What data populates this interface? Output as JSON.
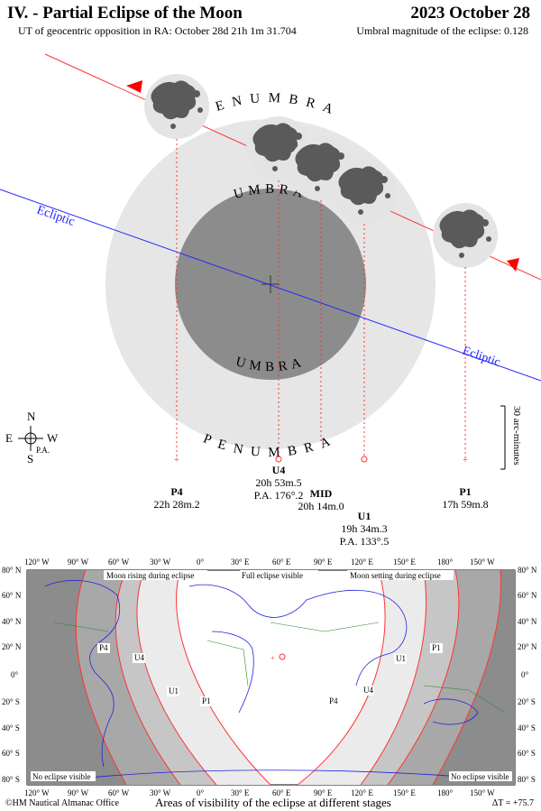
{
  "header": {
    "title": "IV. - Partial Eclipse of the Moon",
    "date": "2023 October 28",
    "opposition": "UT of geocentric opposition in RA: October 28d 21h 1m 31.704",
    "magnitude": "Umbral magnitude of the eclipse: 0.128"
  },
  "diagram": {
    "penumbra_label": "PENUMBRA",
    "umbra_label": "UMBRA",
    "ecliptic_label": "Ecliptic",
    "scale_label": "30 arc-minutes",
    "compass": {
      "n": "N",
      "s": "S",
      "e": "E",
      "w": "W",
      "pa": "P.A."
    }
  },
  "contacts": [
    {
      "name": "P4",
      "time": "22h 28m.2"
    },
    {
      "name": "U4",
      "time": "20h 53m.5",
      "pa": "P.A. 176°.2"
    },
    {
      "name": "MID",
      "time": "20h 14m.0"
    },
    {
      "name": "U1",
      "time": "19h 34m.3",
      "pa": "P.A. 133°.5"
    },
    {
      "name": "P1",
      "time": "17h 59m.8"
    }
  ],
  "map": {
    "lon_labels": [
      "120° W",
      "90° W",
      "60° W",
      "30° W",
      "0°",
      "30° E",
      "60° E",
      "90° E",
      "120° E",
      "150° E",
      "180°",
      "150° W"
    ],
    "lat_labels": [
      "80° N",
      "60° N",
      "40° N",
      "20° N",
      "0°",
      "20° S",
      "40° S",
      "60° S",
      "80° S"
    ],
    "moon_rising": "Moon rising during eclipse",
    "full_visible": "Full eclipse visible",
    "moon_setting": "Moon setting during eclipse",
    "no_eclipse": "No eclipse visible",
    "curve_labels": [
      "P4",
      "U4",
      "U1",
      "P1",
      "P4",
      "U4",
      "U1",
      "P1"
    ]
  },
  "footer": {
    "copyright": "©HM Nautical Almanac Office",
    "caption": "Areas of visibility of the eclipse at different stages",
    "delta_t": "ΔT = +75.7"
  }
}
